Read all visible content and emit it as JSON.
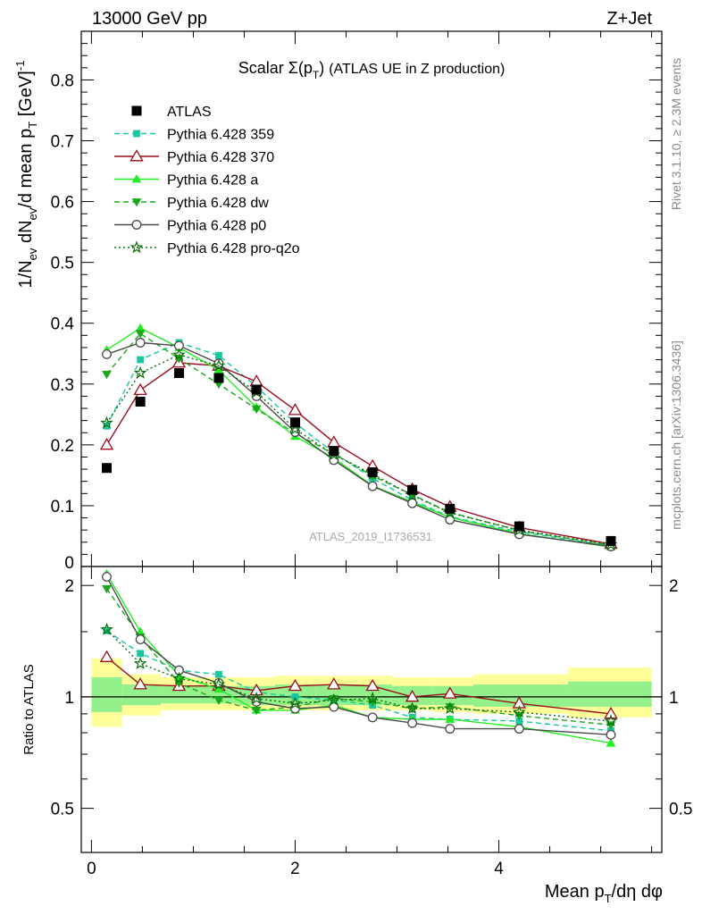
{
  "header": {
    "left": "13000 GeV pp",
    "right": "Z+Jet"
  },
  "side_labels": {
    "rivet": "Rivet 3.1.10, ≥ 2.3M events",
    "mcplots": "mcplots.cern.ch [arXiv:1306.3436]"
  },
  "analysis_id": "ATLAS_2019_I1736531",
  "chart_data": [
    {
      "panel": "main",
      "type": "line",
      "title": "Scalar Σ(p_T) (ATLAS UE in Z production)",
      "ylabel": "1/N_ev dN_ev/d mean p_T [GeV]^-1",
      "xlim": [
        -0.1,
        5.6
      ],
      "ylim": [
        0,
        0.88
      ],
      "yticks": [
        "0",
        "0.1",
        "0.2",
        "0.3",
        "0.4",
        "0.5",
        "0.6",
        "0.7",
        "0.8"
      ],
      "legend_position": "top-left",
      "x": [
        0.15,
        0.48,
        0.86,
        1.25,
        1.62,
        2.0,
        2.38,
        2.76,
        3.15,
        3.52,
        4.2,
        5.1
      ],
      "series": [
        {
          "name": "ATLAS",
          "color": "#000000",
          "marker": "square",
          "line": "none",
          "values": [
            0.162,
            0.271,
            0.318,
            0.31,
            0.291,
            0.237,
            0.19,
            0.155,
            0.126,
            0.095,
            0.066,
            0.042
          ]
        },
        {
          "name": "Pythia 6.428 359",
          "color": "#17c8a3",
          "marker": "smallsquare",
          "line": "dashed",
          "values": [
            0.231,
            0.34,
            0.368,
            0.347,
            0.296,
            0.236,
            0.187,
            0.145,
            0.109,
            0.082,
            0.057,
            0.034
          ]
        },
        {
          "name": "Pythia 6.428 370",
          "color": "#9b0c1c",
          "marker": "opentriangle",
          "line": "solid",
          "values": [
            0.2,
            0.29,
            0.335,
            0.33,
            0.304,
            0.257,
            0.204,
            0.165,
            0.127,
            0.098,
            0.064,
            0.037
          ]
        },
        {
          "name": "Pythia 6.428 a",
          "color": "#22ee22",
          "marker": "triangle",
          "line": "solid",
          "values": [
            0.356,
            0.392,
            0.36,
            0.323,
            0.262,
            0.214,
            0.178,
            0.133,
            0.106,
            0.081,
            0.054,
            0.032
          ]
        },
        {
          "name": "Pythia 6.428 dw",
          "color": "#1aa81a",
          "marker": "invtriangle",
          "line": "dashed",
          "values": [
            0.316,
            0.383,
            0.342,
            0.3,
            0.259,
            0.219,
            0.185,
            0.149,
            0.118,
            0.089,
            0.059,
            0.035
          ]
        },
        {
          "name": "Pythia 6.428 p0",
          "color": "#4a4a4a",
          "marker": "opencircle",
          "line": "solid",
          "values": [
            0.349,
            0.368,
            0.363,
            0.334,
            0.28,
            0.221,
            0.175,
            0.132,
            0.104,
            0.077,
            0.053,
            0.033
          ]
        },
        {
          "name": "Pythia 6.428 pro-q2o",
          "color": "#0a6e0a",
          "marker": "star",
          "line": "dotted",
          "values": [
            0.236,
            0.318,
            0.348,
            0.33,
            0.287,
            0.226,
            0.184,
            0.152,
            0.117,
            0.088,
            0.06,
            0.036
          ]
        }
      ]
    },
    {
      "panel": "ratio",
      "type": "line",
      "xlabel": "Mean p_T/dη dφ",
      "ylabel": "Ratio to ATLAS",
      "xlim": [
        -0.1,
        5.6
      ],
      "ylim": [
        0.38,
        2.25
      ],
      "xticks": [
        "0",
        "2",
        "4"
      ],
      "yticks": [
        "0.5",
        "1",
        "2"
      ],
      "grid": false,
      "x": [
        0.15,
        0.48,
        0.86,
        1.25,
        1.62,
        2.0,
        2.38,
        2.76,
        3.15,
        3.52,
        4.2,
        5.1
      ],
      "bands": {
        "edges": [
          0.0,
          0.3,
          0.68,
          1.05,
          1.45,
          1.8,
          2.2,
          2.57,
          2.95,
          3.35,
          3.75,
          4.68,
          5.5
        ],
        "stat": [
          [
            0.91,
            1.13
          ],
          [
            0.95,
            1.08
          ],
          [
            0.96,
            1.07
          ],
          [
            0.96,
            1.07
          ],
          [
            0.95,
            1.07
          ],
          [
            0.95,
            1.08
          ],
          [
            0.95,
            1.08
          ],
          [
            0.95,
            1.08
          ],
          [
            0.95,
            1.07
          ],
          [
            0.95,
            1.07
          ],
          [
            0.94,
            1.08
          ],
          [
            0.94,
            1.1
          ]
        ],
        "total": [
          [
            0.83,
            1.27
          ],
          [
            0.89,
            1.15
          ],
          [
            0.92,
            1.13
          ],
          [
            0.92,
            1.13
          ],
          [
            0.92,
            1.13
          ],
          [
            0.92,
            1.14
          ],
          [
            0.92,
            1.14
          ],
          [
            0.92,
            1.14
          ],
          [
            0.92,
            1.13
          ],
          [
            0.91,
            1.13
          ],
          [
            0.9,
            1.15
          ],
          [
            0.88,
            1.2
          ]
        ]
      },
      "series": [
        {
          "name": "Pythia 6.428 359",
          "values": [
            1.51,
            1.31,
            1.18,
            1.15,
            1.03,
            1.0,
            0.98,
            0.95,
            0.88,
            0.87,
            0.86,
            0.81
          ]
        },
        {
          "name": "Pythia 6.428 370",
          "values": [
            1.28,
            1.08,
            1.07,
            1.07,
            1.04,
            1.07,
            1.08,
            1.07,
            1.0,
            1.02,
            0.96,
            0.9
          ]
        },
        {
          "name": "Pythia 6.428 a",
          "values": [
            2.15,
            1.5,
            1.14,
            1.05,
            0.92,
            0.92,
            0.95,
            0.88,
            0.87,
            0.87,
            0.83,
            0.75
          ]
        },
        {
          "name": "Pythia 6.428 dw",
          "values": [
            1.96,
            1.45,
            1.09,
            0.98,
            0.92,
            0.94,
            0.99,
            0.97,
            0.93,
            0.94,
            0.89,
            0.84
          ]
        },
        {
          "name": "Pythia 6.428 p0",
          "values": [
            2.11,
            1.43,
            1.18,
            1.09,
            0.97,
            0.93,
            0.94,
            0.88,
            0.85,
            0.82,
            0.82,
            0.79
          ]
        },
        {
          "name": "Pythia 6.428 pro-q2o",
          "values": [
            1.52,
            1.23,
            1.12,
            1.08,
            0.99,
            0.96,
            0.98,
            0.99,
            0.93,
            0.93,
            0.91,
            0.86
          ]
        }
      ]
    }
  ]
}
